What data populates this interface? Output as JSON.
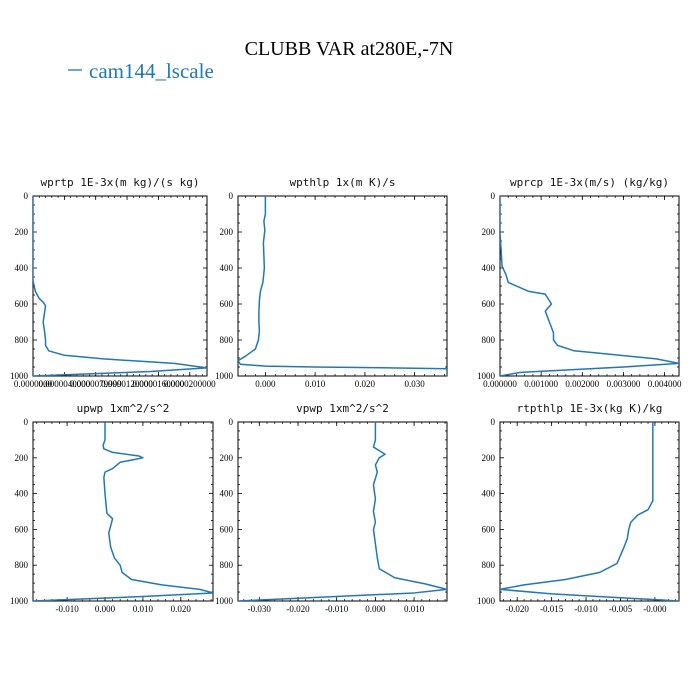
{
  "figure": {
    "title": "CLUBB VAR at280E,-7N",
    "legend": {
      "label": "cam144_lscale",
      "color": "#2377b4"
    }
  },
  "chart_data": [
    {
      "type": "line",
      "title": "wprtp  1E-3x(m kg)/(s kg)",
      "xlim": [
        0.0,
        2.22e-05
      ],
      "ylim": [
        1000,
        0
      ],
      "xticks": [
        0.0,
        4e-06,
        8e-06,
        1.2e-05,
        1.6e-05,
        2e-05
      ],
      "xticklabels": [
        "0.0000000",
        "0.0000040000",
        "0.0000079999",
        "0.0000120000",
        "0.0000160000",
        "0.0000200000"
      ],
      "yticks": [
        0,
        200,
        400,
        600,
        800,
        1000
      ],
      "series": [
        {
          "color": "#2377b4",
          "x": [
            0.0,
            0.0,
            0.0,
            0.0,
            3e-07,
            8e-07,
            1.3e-06,
            1.6e-06,
            1.5e-06,
            1.3e-06,
            1.5e-06,
            1.6e-06,
            1.6e-06,
            2e-06,
            4e-06,
            9e-06,
            1.8e-05,
            2.22e-05,
            1.5e-05,
            0.0
          ],
          "y": [
            0,
            200,
            400,
            470,
            530,
            570,
            590,
            610,
            640,
            700,
            760,
            800,
            830,
            860,
            885,
            905,
            930,
            955,
            975,
            1000
          ]
        }
      ]
    },
    {
      "type": "line",
      "title": "wpthlp  1x(m K)/s",
      "xlim": [
        -0.0055,
        0.0365
      ],
      "ylim": [
        1000,
        0
      ],
      "xticks": [
        0.0,
        0.01,
        0.02,
        0.03
      ],
      "xticklabels": [
        "0.000",
        "0.010",
        "0.020",
        "0.030"
      ],
      "yticks": [
        0,
        200,
        400,
        600,
        800,
        1000
      ],
      "series": [
        {
          "color": "#2377b4",
          "x": [
            0.0,
            0.0,
            -0.0003,
            -0.0001,
            -0.0004,
            -0.0002,
            -0.0005,
            -0.001,
            -0.0012,
            -0.0013,
            -0.0013,
            -0.0012,
            -0.0014,
            -0.002,
            -0.004,
            -0.0055,
            -0.005,
            0.0,
            0.01,
            0.025,
            0.0365,
            0.0365
          ],
          "y": [
            0,
            100,
            140,
            190,
            260,
            400,
            480,
            530,
            580,
            650,
            700,
            750,
            800,
            850,
            890,
            915,
            935,
            945,
            950,
            955,
            960,
            1000
          ]
        }
      ]
    },
    {
      "type": "line",
      "title": "wprcp  1E-3x(m/s) (kg/kg)",
      "xlim": [
        0.0,
        0.00435
      ],
      "ylim": [
        1000,
        0
      ],
      "xticks": [
        0.0,
        0.001,
        0.002,
        0.003,
        0.004
      ],
      "xticklabels": [
        "0.000000",
        "0.001000",
        "0.002000",
        "0.003000",
        "0.004000"
      ],
      "yticks": [
        0,
        200,
        400,
        600,
        800,
        1000
      ],
      "series": [
        {
          "color": "#2377b4",
          "x": [
            0.0,
            0.0,
            5e-05,
            0.00015,
            0.0002,
            0.0007,
            0.0011,
            0.00125,
            0.0011,
            0.0012,
            0.0013,
            0.0013,
            0.0014,
            0.0018,
            0.0027,
            0.0038,
            0.00435,
            0.003,
            0.0005,
            0.0
          ],
          "y": [
            0,
            200,
            390,
            440,
            480,
            530,
            545,
            600,
            640,
            700,
            760,
            800,
            830,
            860,
            880,
            905,
            930,
            950,
            980,
            1000
          ]
        }
      ]
    },
    {
      "type": "line",
      "title": "upwp  1xm^2/s^2",
      "xlim": [
        -0.019,
        0.0285
      ],
      "ylim": [
        1000,
        0
      ],
      "xticks": [
        -0.01,
        0.0,
        0.01,
        0.02
      ],
      "xticklabels": [
        "-0.010",
        "0.000",
        "0.010",
        "0.020"
      ],
      "yticks": [
        0,
        200,
        400,
        600,
        800,
        1000
      ],
      "series": [
        {
          "color": "#2377b4",
          "x": [
            0.0,
            0.0,
            -0.0005,
            -0.0003,
            0.002,
            0.009,
            0.01,
            0.004,
            0.002,
            0.0,
            -0.0003,
            0.0,
            0.0005,
            0.002,
            0.0015,
            0.001,
            0.0015,
            0.0025,
            0.004,
            0.0045,
            0.007,
            0.015,
            0.025,
            0.0285,
            0.01,
            -0.019
          ],
          "y": [
            0,
            100,
            130,
            150,
            170,
            190,
            200,
            225,
            260,
            280,
            310,
            400,
            510,
            540,
            580,
            620,
            700,
            760,
            800,
            840,
            880,
            910,
            935,
            955,
            975,
            1000
          ]
        }
      ]
    },
    {
      "type": "line",
      "title": "vpwp  1xm^2/s^2",
      "xlim": [
        -0.0355,
        0.0185
      ],
      "ylim": [
        1000,
        0
      ],
      "xticks": [
        -0.03,
        -0.02,
        -0.01,
        0.0,
        0.01
      ],
      "xticklabels": [
        "-0.030",
        "-0.020",
        "-0.010",
        "0.000",
        "0.010"
      ],
      "yticks": [
        0,
        200,
        400,
        600,
        800,
        1000
      ],
      "series": [
        {
          "color": "#2377b4",
          "x": [
            0.0,
            0.0,
            -0.0005,
            0.001,
            0.0025,
            0.001,
            0.0,
            0.0005,
            -0.0005,
            0.0,
            -0.0005,
            0.0,
            -0.0005,
            0.0,
            0.0005,
            0.001,
            0.005,
            0.013,
            0.0185,
            0.01,
            -0.015,
            -0.0355
          ],
          "y": [
            0,
            100,
            140,
            160,
            180,
            200,
            240,
            280,
            350,
            430,
            500,
            560,
            600,
            680,
            760,
            820,
            870,
            905,
            935,
            955,
            980,
            1000
          ]
        }
      ]
    },
    {
      "type": "line",
      "title": "rtpthlp  1E-3x(kg K)/kg",
      "xlim": [
        -0.0225,
        0.0035
      ],
      "ylim": [
        1000,
        0
      ],
      "xticks": [
        -0.02,
        -0.015,
        -0.01,
        -0.005,
        0.0
      ],
      "xticklabels": [
        "-0.020",
        "-0.015",
        "-0.010",
        "-0.005",
        "-0.000"
      ],
      "yticks": [
        0,
        200,
        400,
        600,
        800,
        1000
      ],
      "series": [
        {
          "color": "#2377b4",
          "x": [
            -0.0003,
            -0.0003,
            -0.0003,
            -0.001,
            -0.0025,
            -0.0035,
            -0.0038,
            -0.004,
            -0.0045,
            -0.0055,
            -0.008,
            -0.013,
            -0.019,
            -0.0225,
            -0.015,
            0.0035
          ],
          "y": [
            0,
            300,
            440,
            490,
            520,
            560,
            600,
            650,
            700,
            790,
            840,
            880,
            910,
            935,
            960,
            1000
          ]
        }
      ]
    }
  ]
}
